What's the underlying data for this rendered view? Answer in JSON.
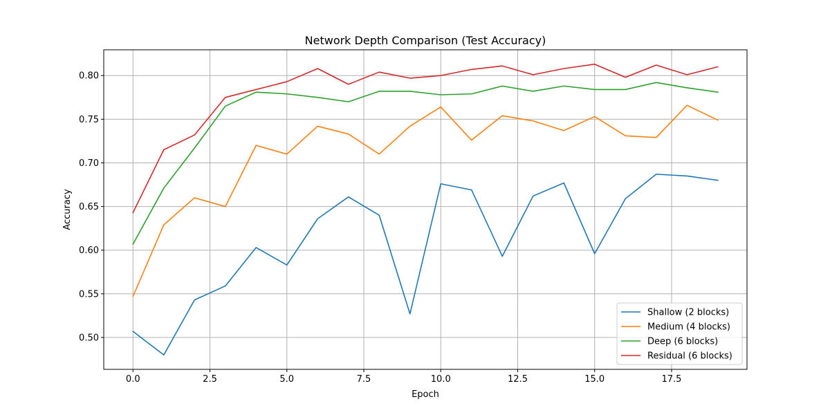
{
  "chart_data": {
    "type": "line",
    "title": "Network Depth Comparison (Test Accuracy)",
    "xlabel": "Epoch",
    "ylabel": "Accuracy",
    "xlim": [
      -0.95,
      19.95
    ],
    "ylim": [
      0.4635,
      0.8295
    ],
    "xticks": [
      0.0,
      2.5,
      5.0,
      7.5,
      10.0,
      12.5,
      15.0,
      17.5
    ],
    "xtick_labels": [
      "0.0",
      "2.5",
      "5.0",
      "7.5",
      "10.0",
      "12.5",
      "15.0",
      "17.5"
    ],
    "yticks": [
      0.5,
      0.55,
      0.6,
      0.65,
      0.7,
      0.75,
      0.8
    ],
    "ytick_labels": [
      "0.50",
      "0.55",
      "0.60",
      "0.65",
      "0.70",
      "0.75",
      "0.80"
    ],
    "grid": true,
    "legend_position": "lower-right",
    "x": [
      0,
      1,
      2,
      3,
      4,
      5,
      6,
      7,
      8,
      9,
      10,
      11,
      12,
      13,
      14,
      15,
      16,
      17,
      18,
      19
    ],
    "series": [
      {
        "name": "Shallow (2 blocks)",
        "color": "#1f77b4",
        "values": [
          0.507,
          0.48,
          0.543,
          0.559,
          0.603,
          0.583,
          0.636,
          0.661,
          0.64,
          0.527,
          0.676,
          0.669,
          0.593,
          0.662,
          0.677,
          0.596,
          0.659,
          0.687,
          0.685,
          0.68
        ]
      },
      {
        "name": "Medium (4 blocks)",
        "color": "#ff7f0e",
        "values": [
          0.547,
          0.629,
          0.66,
          0.65,
          0.72,
          0.71,
          0.742,
          0.733,
          0.71,
          0.742,
          0.764,
          0.726,
          0.754,
          0.748,
          0.737,
          0.753,
          0.731,
          0.729,
          0.766,
          0.749
        ]
      },
      {
        "name": "Deep (6 blocks)",
        "color": "#2ca02c",
        "values": [
          0.607,
          0.671,
          0.717,
          0.765,
          0.781,
          0.779,
          0.775,
          0.77,
          0.782,
          0.782,
          0.778,
          0.779,
          0.788,
          0.782,
          0.788,
          0.784,
          0.784,
          0.792,
          0.786,
          0.781
        ]
      },
      {
        "name": "Residual (6 blocks)",
        "color": "#d62728",
        "values": [
          0.643,
          0.715,
          0.732,
          0.775,
          0.784,
          0.793,
          0.808,
          0.79,
          0.804,
          0.797,
          0.8,
          0.807,
          0.811,
          0.801,
          0.808,
          0.813,
          0.798,
          0.812,
          0.801,
          0.81
        ]
      }
    ]
  }
}
